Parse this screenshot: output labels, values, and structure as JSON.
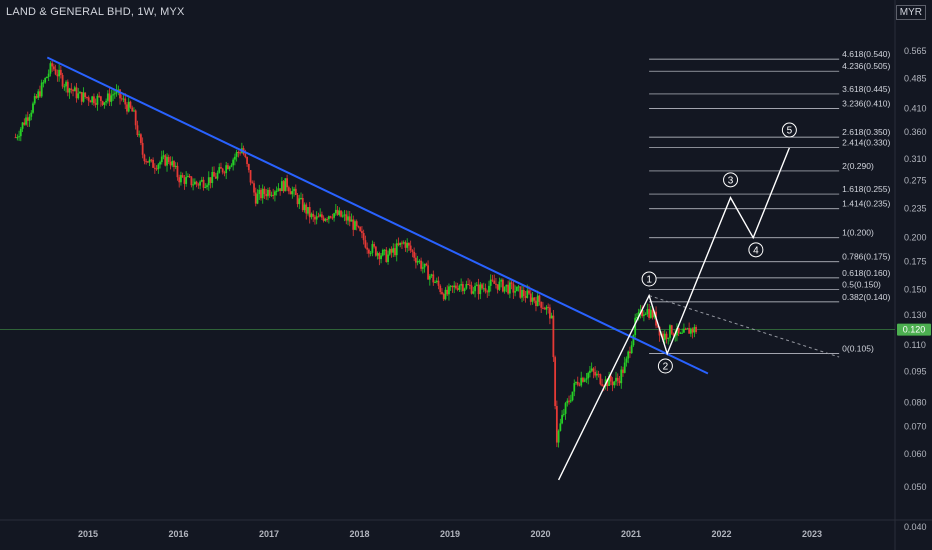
{
  "header": {
    "symbol_line": "LAND & GENERAL BHD, 1W, MYX",
    "currency": "MYR"
  },
  "colors": {
    "up": "#26d126",
    "down": "#e53935",
    "trendline": "#2962ff",
    "wave": "#ffffff",
    "current": "#4caf50"
  },
  "chart_data": {
    "type": "candlestick",
    "scale": "log",
    "title": "LAND & GENERAL BHD, 1W, MYX",
    "y_ticks": [
      0.565,
      0.485,
      0.41,
      0.36,
      0.31,
      0.275,
      0.235,
      0.2,
      0.175,
      0.15,
      0.13,
      0.11,
      0.095,
      0.08,
      0.07,
      0.06,
      0.05,
      0.04
    ],
    "y_tick_labels": [
      "0.565",
      "0.485",
      "0.410",
      "0.360",
      "0.310",
      "0.275",
      "0.235",
      "0.200",
      "0.175",
      "0.150",
      "0.130",
      "0.110",
      "0.095",
      "0.080",
      "0.070",
      "0.060",
      "0.050",
      "0.040"
    ],
    "x_ticks": [
      2015,
      2016,
      2017,
      2018,
      2019,
      2020,
      2021,
      2022,
      2023
    ],
    "x_tick_labels": [
      "2015",
      "2016",
      "2017",
      "2018",
      "2019",
      "2020",
      "2021",
      "2022",
      "2023"
    ],
    "current_price": 0.12,
    "current_price_label": "0.120",
    "price_path": [
      [
        2014.2,
        0.35
      ],
      [
        2014.4,
        0.42
      ],
      [
        2014.6,
        0.52
      ],
      [
        2014.75,
        0.47
      ],
      [
        2014.9,
        0.44
      ],
      [
        2015.2,
        0.43
      ],
      [
        2015.3,
        0.45
      ],
      [
        2015.5,
        0.4
      ],
      [
        2015.6,
        0.32
      ],
      [
        2015.7,
        0.3
      ],
      [
        2015.9,
        0.31
      ],
      [
        2016.0,
        0.28
      ],
      [
        2016.2,
        0.27
      ],
      [
        2016.4,
        0.28
      ],
      [
        2016.6,
        0.31
      ],
      [
        2016.7,
        0.33
      ],
      [
        2016.85,
        0.25
      ],
      [
        2017.0,
        0.26
      ],
      [
        2017.2,
        0.27
      ],
      [
        2017.3,
        0.25
      ],
      [
        2017.5,
        0.22
      ],
      [
        2017.7,
        0.23
      ],
      [
        2017.9,
        0.22
      ],
      [
        2018.1,
        0.19
      ],
      [
        2018.3,
        0.18
      ],
      [
        2018.5,
        0.195
      ],
      [
        2018.7,
        0.17
      ],
      [
        2018.85,
        0.155
      ],
      [
        2018.95,
        0.145
      ],
      [
        2019.1,
        0.155
      ],
      [
        2019.3,
        0.15
      ],
      [
        2019.5,
        0.155
      ],
      [
        2019.7,
        0.15
      ],
      [
        2019.85,
        0.145
      ],
      [
        2020.0,
        0.14
      ],
      [
        2020.12,
        0.13
      ],
      [
        2020.18,
        0.065
      ],
      [
        2020.25,
        0.075
      ],
      [
        2020.4,
        0.09
      ],
      [
        2020.55,
        0.095
      ],
      [
        2020.7,
        0.09
      ],
      [
        2020.85,
        0.09
      ],
      [
        2020.95,
        0.1
      ],
      [
        2021.05,
        0.125
      ],
      [
        2021.15,
        0.135
      ],
      [
        2021.25,
        0.13
      ],
      [
        2021.35,
        0.115
      ],
      [
        2021.45,
        0.12
      ],
      [
        2021.55,
        0.115
      ],
      [
        2021.65,
        0.12
      ],
      [
        2021.72,
        0.12
      ]
    ],
    "trendline": {
      "from": [
        2014.55,
        0.545
      ],
      "to": [
        2021.85,
        0.094
      ]
    },
    "dotted_projection": {
      "from": [
        2021.2,
        0.145
      ],
      "to": [
        2023.3,
        0.103
      ]
    },
    "wave_path": [
      [
        2020.2,
        0.052
      ],
      [
        2021.2,
        0.145
      ],
      [
        2021.4,
        0.105
      ],
      [
        2022.1,
        0.25
      ],
      [
        2022.35,
        0.2
      ],
      [
        2022.75,
        0.33
      ]
    ],
    "wave_labels": [
      {
        "label": "1",
        "x": 2021.2,
        "y": 0.159
      },
      {
        "label": "2",
        "x": 2021.38,
        "y": 0.098
      },
      {
        "label": "3",
        "x": 2022.1,
        "y": 0.276
      },
      {
        "label": "4",
        "x": 2022.38,
        "y": 0.187
      },
      {
        "label": "5",
        "x": 2022.75,
        "y": 0.364
      }
    ],
    "fib_levels": [
      {
        "ratio": "4.618",
        "price": 0.54,
        "label": "4.618(0.540)"
      },
      {
        "ratio": "4.236",
        "price": 0.505,
        "label": "4.236(0.505)"
      },
      {
        "ratio": "3.618",
        "price": 0.445,
        "label": "3.618(0.445)"
      },
      {
        "ratio": "3.236",
        "price": 0.41,
        "label": "3.236(0.410)"
      },
      {
        "ratio": "2.618",
        "price": 0.35,
        "label": "2.618(0.350)"
      },
      {
        "ratio": "2.414",
        "price": 0.33,
        "label": "2.414(0.330)"
      },
      {
        "ratio": "2",
        "price": 0.29,
        "label": "2(0.290)"
      },
      {
        "ratio": "1.618",
        "price": 0.255,
        "label": "1.618(0.255)"
      },
      {
        "ratio": "1.414",
        "price": 0.235,
        "label": "1.414(0.235)"
      },
      {
        "ratio": "1",
        "price": 0.2,
        "label": "1(0.200)"
      },
      {
        "ratio": "0.786",
        "price": 0.175,
        "label": "0.786(0.175)"
      },
      {
        "ratio": "0.618",
        "price": 0.16,
        "label": "0.618(0.160)"
      },
      {
        "ratio": "0.5",
        "price": 0.15,
        "label": "0.5(0.150)"
      },
      {
        "ratio": "0.382",
        "price": 0.14,
        "label": "0.382(0.140)"
      },
      {
        "ratio": "0",
        "price": 0.105,
        "label": "0(0.105)"
      }
    ],
    "fib_range": [
      2021.2,
      2023.3
    ]
  }
}
